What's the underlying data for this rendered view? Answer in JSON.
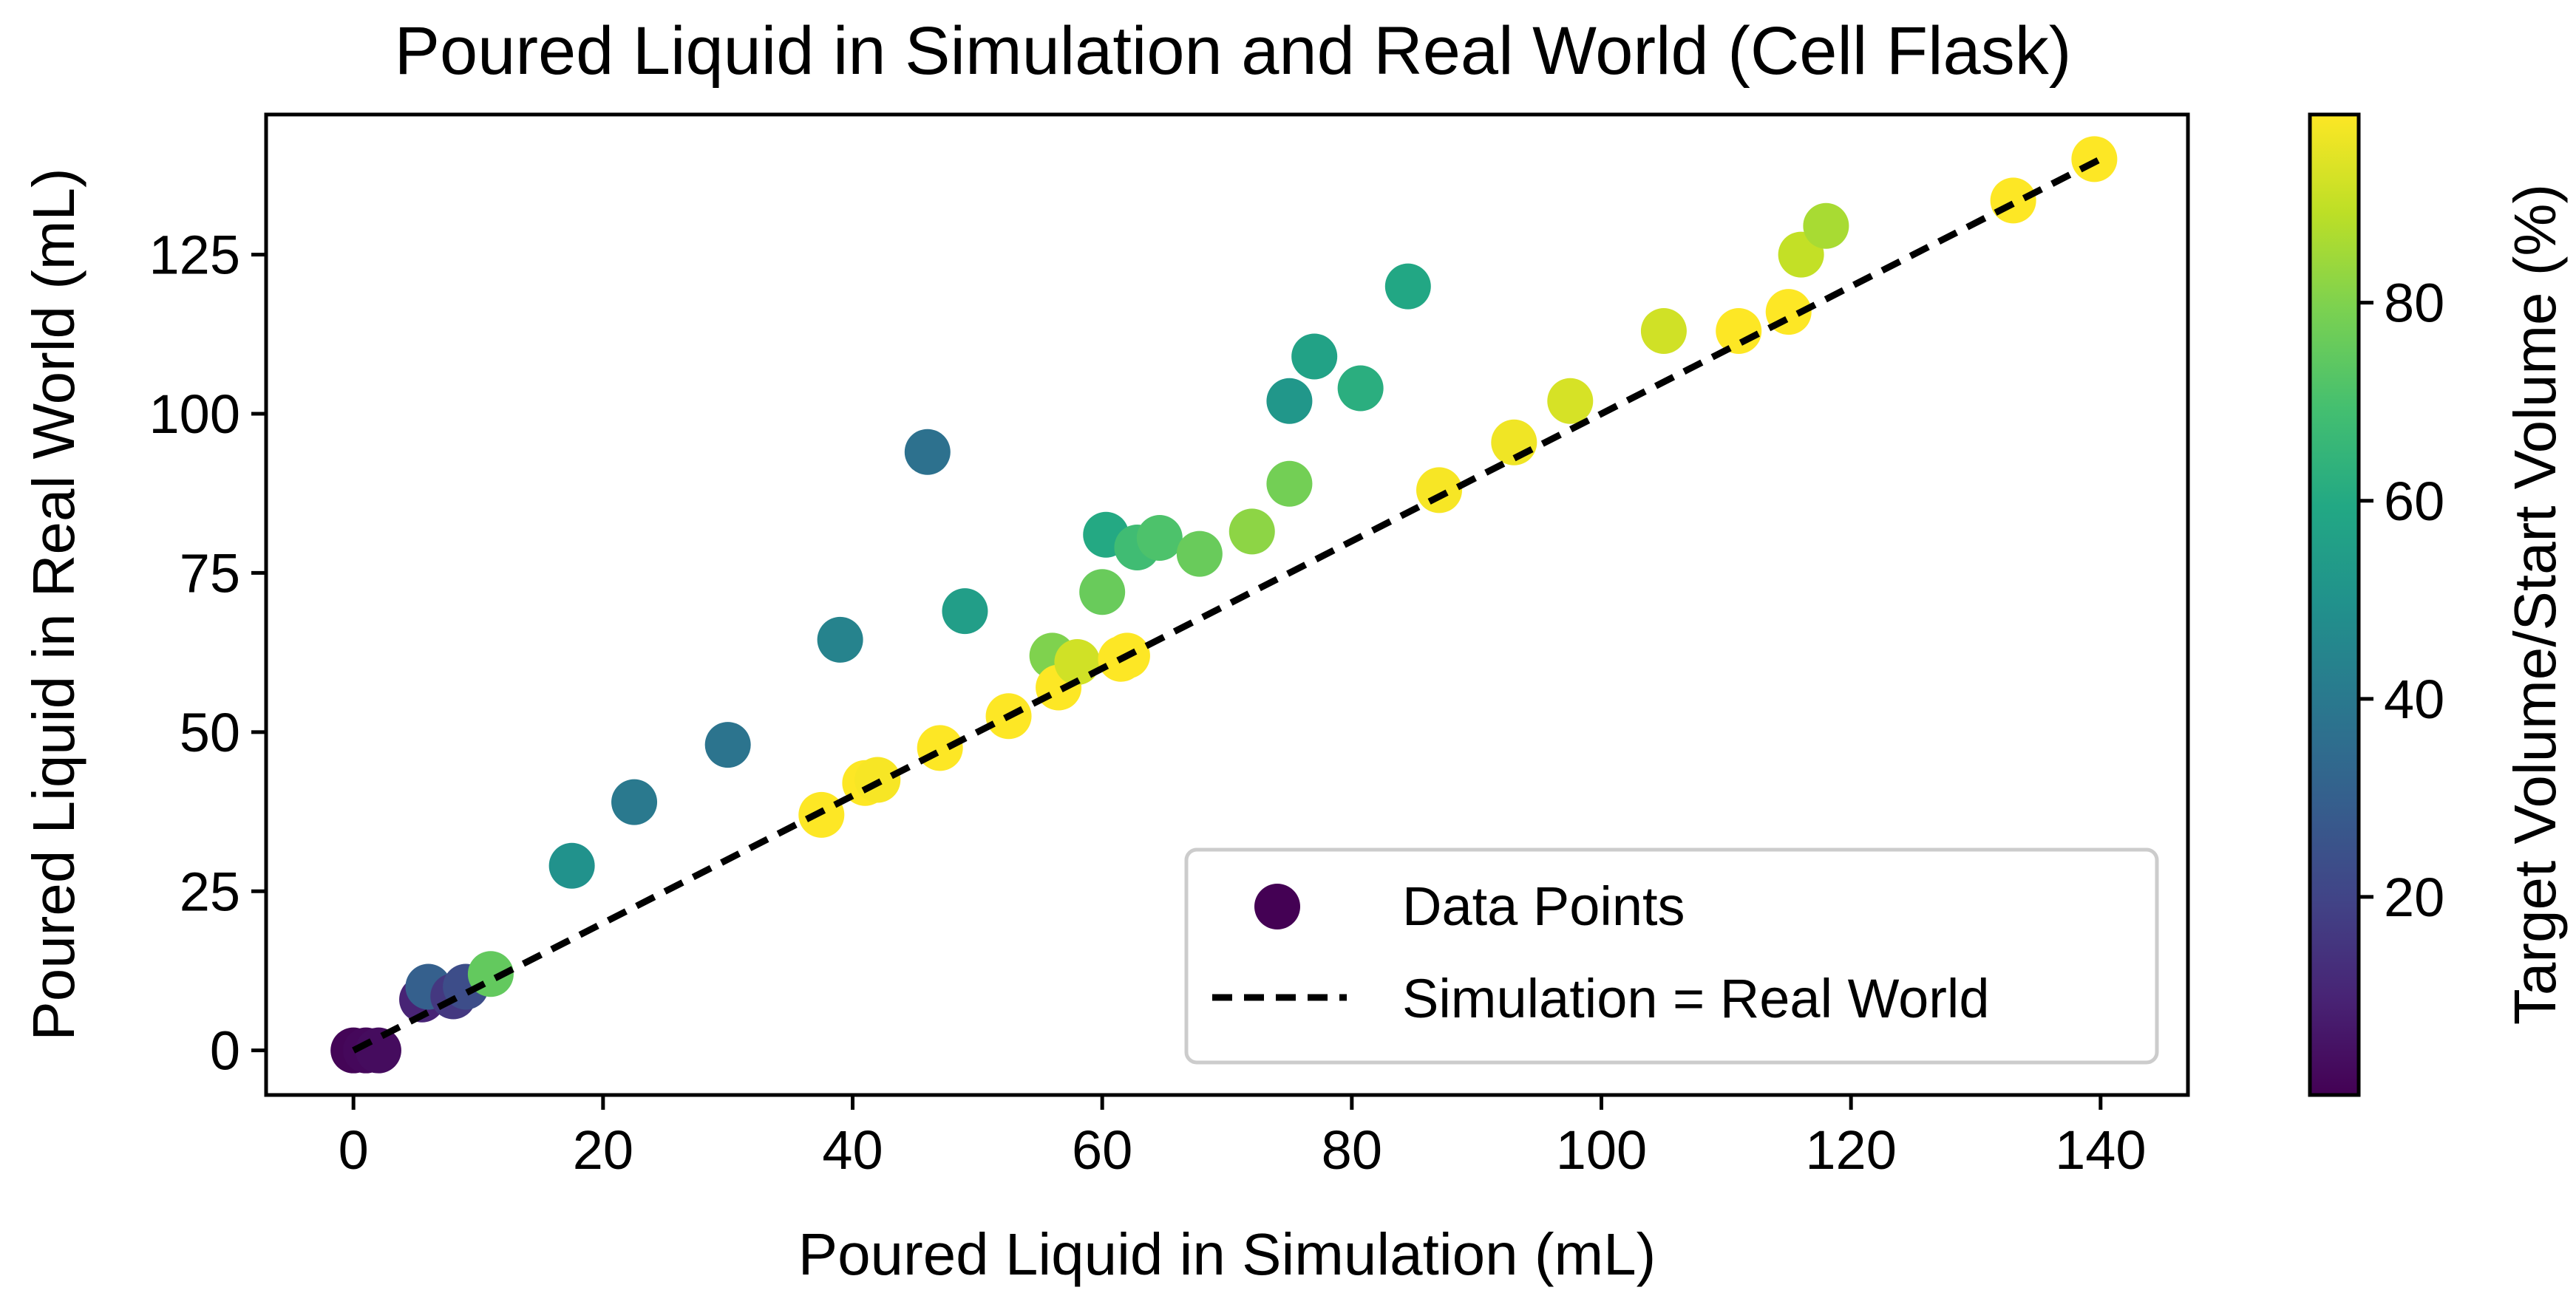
{
  "chart_data": {
    "type": "scatter",
    "title": "Poured Liquid in Simulation and Real World (Cell Flask)",
    "xlabel": "Poured Liquid in Simulation (mL)",
    "ylabel": "Poured Liquid in Real World (mL)",
    "xlim": [
      -7,
      147
    ],
    "ylim": [
      -7,
      147
    ],
    "xticks": [
      0,
      20,
      40,
      60,
      80,
      100,
      120,
      140
    ],
    "yticks": [
      0,
      25,
      50,
      75,
      100,
      125
    ],
    "grid": false,
    "colormap": "viridis",
    "colorbar": {
      "label": "Target Volume/Start Volume (%)",
      "range": [
        0,
        99
      ],
      "ticks": [
        20,
        40,
        60,
        80
      ],
      "stops": [
        "#440154",
        "#482475",
        "#414487",
        "#355f8d",
        "#2a788e",
        "#21918c",
        "#22a884",
        "#44bf70",
        "#7ad151",
        "#bddf26",
        "#fde725"
      ]
    },
    "series": [
      {
        "name": "Data Points",
        "marker": "circle",
        "x": [
          0,
          1,
          2,
          5.5,
          6,
          8,
          9,
          11,
          17.5,
          22.5,
          30,
          39,
          46,
          49,
          56,
          60,
          60.3,
          62.8,
          64.6,
          67.8,
          72,
          75,
          75,
          77,
          80.7,
          84.5,
          116,
          118,
          37.5,
          41,
          42,
          47,
          52.5,
          56.5,
          58,
          61.5,
          62,
          87,
          93,
          97.5,
          105,
          111,
          115,
          133,
          139.5
        ],
        "y": [
          0,
          0,
          0,
          8,
          10,
          8.5,
          10,
          12,
          29,
          39,
          48,
          64.5,
          94,
          69,
          62,
          72,
          81,
          79,
          80.5,
          78,
          81.5,
          89,
          102,
          109,
          104,
          120,
          125,
          129.5,
          37,
          42,
          42.5,
          47.5,
          52.5,
          57,
          61,
          61.5,
          62,
          88,
          95.5,
          102,
          113,
          113,
          116,
          133.5,
          140
        ],
        "c": [
          1,
          2,
          3,
          10,
          30,
          16,
          23,
          75,
          50,
          40,
          38,
          44,
          37,
          55,
          80,
          76,
          60,
          68,
          71,
          76,
          82,
          78,
          52,
          57,
          62,
          59,
          90,
          86,
          99,
          99,
          98,
          99,
          99,
          99,
          92,
          99,
          99,
          98,
          97,
          93,
          92,
          99,
          99,
          99,
          99
        ]
      },
      {
        "name": "Simulation = Real World",
        "style": "dashed",
        "color": "#000000",
        "x": [
          0,
          140
        ],
        "y": [
          0,
          140
        ]
      }
    ],
    "legend": {
      "position": "lower-right",
      "entries": [
        "Data Points",
        "Simulation = Real World"
      ],
      "marker_color": "#440154"
    }
  }
}
